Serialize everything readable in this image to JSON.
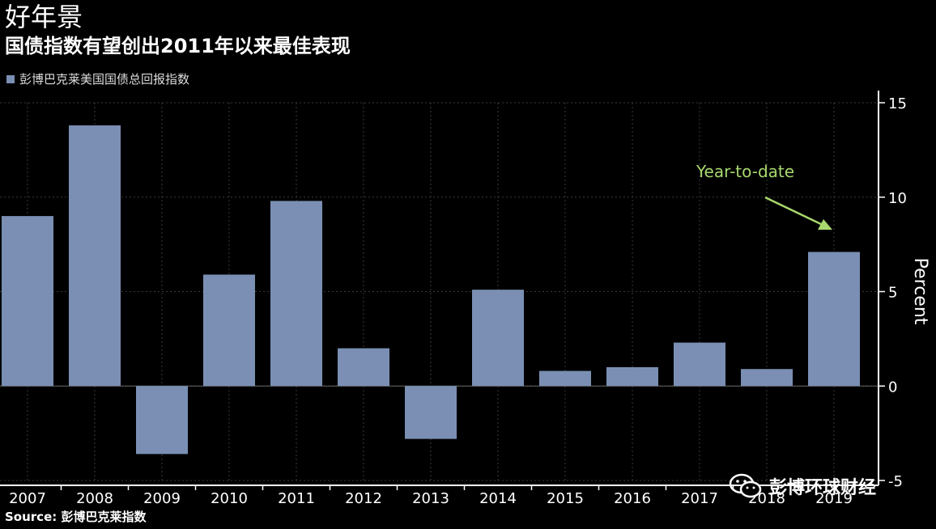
{
  "header": {
    "title": "好年景",
    "subtitle": "国债指数有望创出2011年以来最佳表现"
  },
  "legend": {
    "label": "彭博巴克莱美国国债总回报指数"
  },
  "source": {
    "text": "Source: 彭博巴克莱指数"
  },
  "watermark": {
    "text": "彭博环球财经",
    "icon": "wechat-icon"
  },
  "colors": {
    "background": "#000000",
    "bar": "#7a8fb3",
    "grid": "#3a3a3a",
    "axis": "#ffffff",
    "annotation": "#a8d86e"
  },
  "chart_data": {
    "type": "bar",
    "categories": [
      "2007",
      "2008",
      "2009",
      "2010",
      "2011",
      "2012",
      "2013",
      "2014",
      "2015",
      "2016",
      "2017",
      "2018",
      "2019"
    ],
    "series": [
      {
        "name": "彭博巴克莱美国国债总回报指数",
        "values": [
          9.0,
          13.8,
          -3.6,
          5.9,
          9.8,
          2.0,
          -2.8,
          5.1,
          0.8,
          1.0,
          2.3,
          0.9,
          7.1
        ]
      }
    ],
    "ylabel": "Percent",
    "ylim": [
      -5,
      15
    ],
    "yticks": [
      15,
      10,
      5,
      0,
      -5
    ],
    "grid": true,
    "axis_side": "right",
    "annotation": {
      "text": "Year-to-date",
      "target_category": "2019"
    }
  }
}
